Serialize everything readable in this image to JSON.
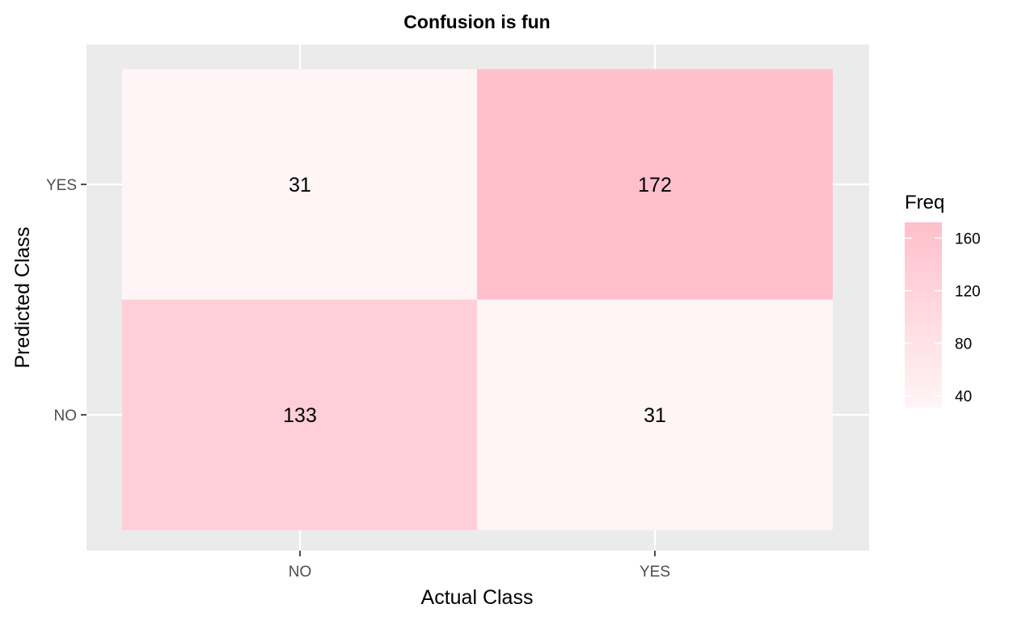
{
  "colors": {
    "panel_background": "#ebebeb",
    "grid": "#ffffff",
    "low": "#fff5f6",
    "high": "#ffbfcb",
    "tick": "#4d4d4d"
  },
  "chart_data": {
    "type": "heatmap",
    "title": "Confusion is fun",
    "xlabel": "Actual Class",
    "ylabel": "Predicted Class",
    "x_categories": [
      "NO",
      "YES"
    ],
    "y_categories": [
      "NO",
      "YES"
    ],
    "cells": [
      {
        "x": "NO",
        "y": "YES",
        "value": 31
      },
      {
        "x": "YES",
        "y": "YES",
        "value": 172
      },
      {
        "x": "NO",
        "y": "NO",
        "value": 133
      },
      {
        "x": "YES",
        "y": "NO",
        "value": 31
      }
    ],
    "legend": {
      "title": "Freq",
      "ticks": [
        40,
        80,
        120,
        160
      ],
      "range": [
        31,
        172
      ],
      "placement": "right"
    },
    "grid": true
  }
}
